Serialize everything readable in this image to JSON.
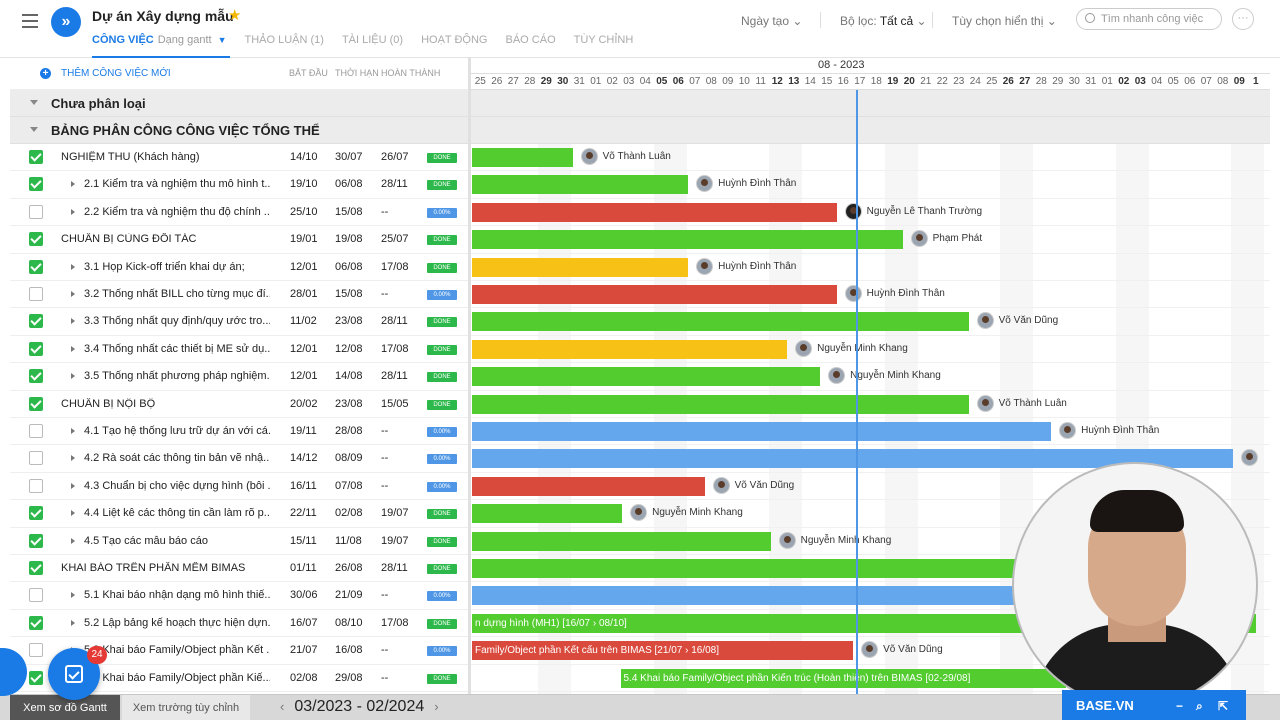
{
  "project": {
    "title": "Dự án Xây dựng mẫu",
    "star": "★"
  },
  "tabs": [
    {
      "label": "CÔNG VIỆC",
      "sub": "Dạng gantt"
    },
    {
      "label": "THẢO LUẬN (1)"
    },
    {
      "label": "TÀI LIỆU (0)"
    },
    {
      "label": "HOẠT ĐỘNG"
    },
    {
      "label": "BÁO CÁO"
    },
    {
      "label": "TÙY CHỈNH"
    }
  ],
  "controls": {
    "sort": "Ngày tạo",
    "filter_label": "Bộ lọc:",
    "filter_value": "Tất cả",
    "display": "Tùy chọn hiển thị",
    "search_placeholder": "Tìm nhanh công việc",
    "more": "···"
  },
  "list": {
    "add_task": "THÊM CÔNG VIỆC MỚI",
    "col_headers": {
      "start": "BẮT ĐẦU",
      "deadline": "THỜI HẠN",
      "done": "HOÀN THÀNH"
    },
    "groups": [
      {
        "label": "Chưa phân loại"
      },
      {
        "label": "BẢNG PHÂN CÔNG CÔNG VIỆC TỔNG THỂ"
      }
    ],
    "rows": [
      {
        "checked": true,
        "sub": false,
        "name": "NGHIỆM THU (Khách hàng)",
        "start": "14/10",
        "deadline": "30/07",
        "done": "26/07",
        "status": "DONE"
      },
      {
        "checked": true,
        "sub": true,
        "name": "2.1 Kiểm tra và nghiệm thu mô hình t...",
        "start": "19/10",
        "deadline": "06/08",
        "done": "28/11",
        "status": "DONE"
      },
      {
        "checked": false,
        "sub": true,
        "name": "2.2 Kiểm tra và nghiệm thu độ chính ...",
        "start": "25/10",
        "deadline": "15/08",
        "done": "--",
        "status": "0.00%"
      },
      {
        "checked": true,
        "sub": false,
        "name": "CHUẨN BỊ CÙNG ĐỐI TÁC",
        "start": "19/01",
        "deadline": "19/08",
        "done": "25/07",
        "status": "DONE"
      },
      {
        "checked": true,
        "sub": true,
        "name": "3.1 Họp Kick-off triển khai dự án;",
        "start": "12/01",
        "deadline": "06/08",
        "done": "17/08",
        "status": "DONE"
      },
      {
        "checked": false,
        "sub": true,
        "name": "3.2 Thống nhất BILL cho từng mục đí...",
        "start": "28/01",
        "deadline": "15/08",
        "done": "--",
        "status": "0.00%"
      },
      {
        "checked": true,
        "sub": true,
        "name": "3.3 Thống nhất quy định/quy ước tro...",
        "start": "11/02",
        "deadline": "23/08",
        "done": "28/11",
        "status": "DONE"
      },
      {
        "checked": true,
        "sub": true,
        "name": "3.4 Thống nhất các thiết bị ME sử dụ...",
        "start": "12/01",
        "deadline": "12/08",
        "done": "17/08",
        "status": "DONE"
      },
      {
        "checked": true,
        "sub": true,
        "name": "3.5 Thống nhất phương pháp nghiệm...",
        "start": "12/01",
        "deadline": "14/08",
        "done": "28/11",
        "status": "DONE"
      },
      {
        "checked": true,
        "sub": false,
        "name": "CHUẨN BỊ NỘI BỘ",
        "start": "20/02",
        "deadline": "23/08",
        "done": "15/05",
        "status": "DONE"
      },
      {
        "checked": false,
        "sub": true,
        "name": "4.1 Tạo hệ thống lưu trữ dự án với cá...",
        "start": "19/11",
        "deadline": "28/08",
        "done": "--",
        "status": "0.00%"
      },
      {
        "checked": false,
        "sub": true,
        "name": "4.2 Rà soát các thông tin bản vẽ nhậ...",
        "start": "14/12",
        "deadline": "08/09",
        "done": "--",
        "status": "0.00%"
      },
      {
        "checked": false,
        "sub": true,
        "name": "4.3 Chuẩn bị cho việc dựng hình (bôi ...",
        "start": "16/11",
        "deadline": "07/08",
        "done": "--",
        "status": "0.00%"
      },
      {
        "checked": true,
        "sub": true,
        "name": "4.4 Liệt kê các thông tin cần làm rõ p...",
        "start": "22/11",
        "deadline": "02/08",
        "done": "19/07",
        "status": "DONE"
      },
      {
        "checked": true,
        "sub": true,
        "name": "4.5 Tạo các mẫu báo cáo",
        "start": "15/11",
        "deadline": "11/08",
        "done": "19/07",
        "status": "DONE"
      },
      {
        "checked": true,
        "sub": false,
        "name": "KHAI BÁO TRÊN PHẦN MỀM BIMAS",
        "start": "01/11",
        "deadline": "26/08",
        "done": "28/11",
        "status": "DONE"
      },
      {
        "checked": false,
        "sub": true,
        "name": "5.1 Khai báo nhận dạng mô hình thiế...",
        "start": "30/06",
        "deadline": "21/09",
        "done": "--",
        "status": "0.00%"
      },
      {
        "checked": true,
        "sub": true,
        "name": "5.2 Lập bảng kế hoạch thực hiện dựn...",
        "start": "16/07",
        "deadline": "08/10",
        "done": "17/08",
        "status": "DONE"
      },
      {
        "checked": false,
        "sub": true,
        "name": "5.3 Khai báo Family/Object phần Kết ...",
        "start": "21/07",
        "deadline": "16/08",
        "done": "--",
        "status": "0.00%"
      },
      {
        "checked": true,
        "sub": true,
        "name": "5.4 Khai báo Family/Object phần Kiế...",
        "start": "02/08",
        "deadline": "29/08",
        "done": "--",
        "status": "DONE"
      }
    ]
  },
  "gantt": {
    "month_label": "08 - 2023",
    "days": [
      "25",
      "26",
      "27",
      "28",
      "29",
      "30",
      "31",
      "01",
      "02",
      "03",
      "04",
      "05",
      "06",
      "07",
      "08",
      "09",
      "10",
      "11",
      "12",
      "13",
      "14",
      "15",
      "16",
      "17",
      "18",
      "19",
      "20",
      "21",
      "22",
      "23",
      "24",
      "25",
      "26",
      "27",
      "28",
      "29",
      "30",
      "31",
      "01",
      "02",
      "03",
      "04",
      "05",
      "06",
      "07",
      "08",
      "09",
      "1"
    ],
    "weekend_index": [
      4,
      5,
      11,
      12,
      18,
      19,
      25,
      26,
      32,
      33,
      39,
      40,
      46,
      47
    ],
    "colors": {
      "green": "#52cc2e",
      "red": "#d94a3d",
      "yellow": "#f7c215",
      "blue": "#64a7ec",
      "today": "#4f97e6"
    },
    "bars": [
      {
        "row": 0,
        "start": 0,
        "len": 6.1,
        "color": "green",
        "assignee": "Võ Thành Luân"
      },
      {
        "row": 1,
        "start": 0,
        "len": 13.1,
        "color": "green",
        "assignee": "Huỳnh Đình Thân"
      },
      {
        "row": 2,
        "start": 0,
        "len": 22.1,
        "color": "red",
        "assignee": "Nguyễn Lê Thanh Trường",
        "dark": true
      },
      {
        "row": 3,
        "start": 0,
        "len": 26.1,
        "color": "green",
        "assignee": "Phạm Phát"
      },
      {
        "row": 4,
        "start": 0,
        "len": 13.1,
        "color": "yellow",
        "assignee": "Huỳnh Đình Thân"
      },
      {
        "row": 5,
        "start": 0,
        "len": 22.1,
        "color": "red",
        "assignee": "Huỳnh Đình Thân"
      },
      {
        "row": 6,
        "start": 0,
        "len": 30.1,
        "color": "green",
        "assignee": "Võ Văn Dũng"
      },
      {
        "row": 7,
        "start": 0,
        "len": 19.1,
        "color": "yellow",
        "assignee": "Nguyễn Minh Khang"
      },
      {
        "row": 8,
        "start": 0,
        "len": 21.1,
        "color": "green",
        "assignee": "Nguyễn Minh Khang"
      },
      {
        "row": 9,
        "start": 0,
        "len": 30.1,
        "color": "green",
        "assignee": "Võ Thành Luân"
      },
      {
        "row": 10,
        "start": 0,
        "len": 35.1,
        "color": "blue",
        "assignee": "Huỳnh Đình Thân"
      },
      {
        "row": 11,
        "start": 0,
        "len": 46.1,
        "color": "blue",
        "assignee": ""
      },
      {
        "row": 12,
        "start": 0,
        "len": 14.1,
        "color": "red",
        "assignee": "Võ Văn Dũng"
      },
      {
        "row": 13,
        "start": 0,
        "len": 9.1,
        "color": "green",
        "assignee": "Nguyễn Minh Khang"
      },
      {
        "row": 14,
        "start": 0,
        "len": 18.1,
        "color": "green",
        "assignee": "Nguyễn Minh Khang"
      },
      {
        "row": 15,
        "start": 0,
        "len": 33,
        "color": "green",
        "assignee": ""
      },
      {
        "row": 16,
        "start": 0,
        "len": 33,
        "color": "blue",
        "assignee": ""
      },
      {
        "row": 17,
        "start": 0,
        "len": 47.5,
        "color": "green",
        "assignee": "",
        "text": "n dựng hình (MH1) [16/07 › 08/10]"
      },
      {
        "row": 18,
        "start": 0,
        "len": 23.1,
        "color": "red",
        "assignee": "Võ Văn Dũng",
        "text": "Family/Object phần Kết cấu trên BIMAS [21/07 › 16/08]"
      },
      {
        "row": 19,
        "start": 9,
        "len": 27,
        "color": "green",
        "assignee": "",
        "text": "5.4 Khai báo Family/Object phần Kiến trúc (Hoàn thiện) trên BIMAS [02-29/08]"
      }
    ]
  },
  "bottom": {
    "view_gantt": "Xem sơ đồ Gantt",
    "view_fields": "Xem trường tùy chỉnh",
    "date_range": "03/2023 - 02/2024",
    "prev": "‹",
    "next": "›"
  },
  "fab": {
    "badge": "24"
  },
  "brand": {
    "label": "BASE.VN",
    "minimize": "−",
    "search": "⌕",
    "expand": "⇱"
  }
}
